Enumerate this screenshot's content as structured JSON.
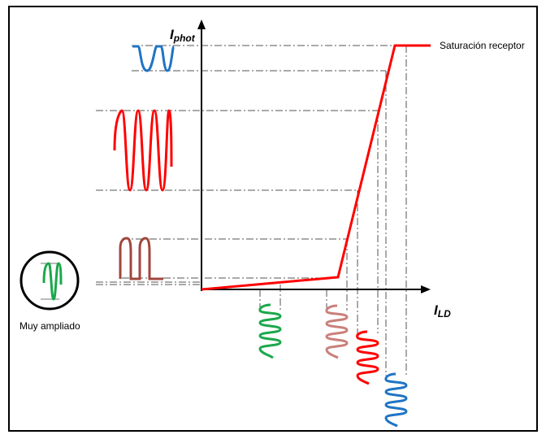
{
  "diagram": {
    "y_axis_label": {
      "main": "I",
      "sub": "phot"
    },
    "x_axis_label": {
      "main": "I",
      "sub": "LD"
    },
    "saturation_label": "Saturación receptor",
    "zoom_label": "Muy ampliado"
  },
  "colors": {
    "transfer_curve": "#ff0000",
    "axes": "#000000",
    "guide_lines": "#555555",
    "green_signal": "#1aa84a",
    "pink_signal": "#c9807a",
    "red_signal": "#ff0000",
    "blue_signal": "#1f74c4",
    "brown_signal": "#a0463c"
  }
}
